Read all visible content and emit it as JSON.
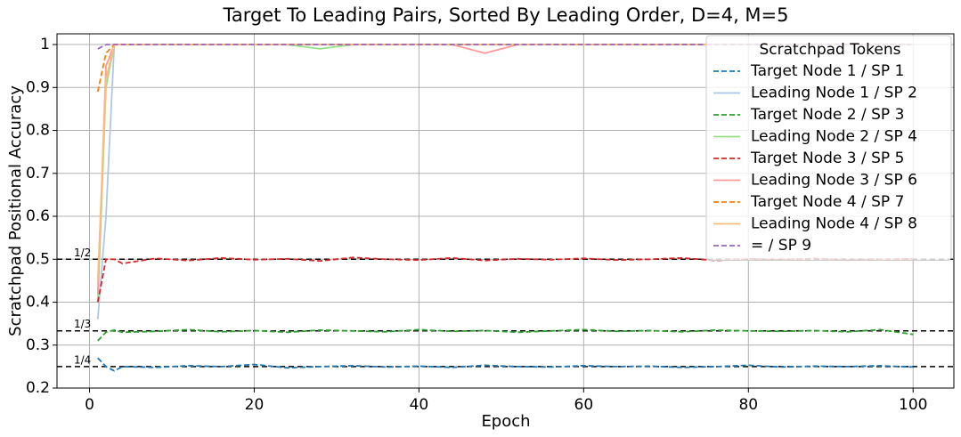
{
  "chart_data": {
    "type": "line",
    "title": "Target To Leading Pairs, Sorted By Leading Order, D=4, M=5",
    "x_label": "Epoch",
    "y_label": "Scratchpad Positional Accuracy",
    "xlim": [
      -3.95,
      104.95
    ],
    "ylim": [
      0.2,
      1.025
    ],
    "xticks": [
      0,
      20,
      40,
      60,
      80,
      100
    ],
    "yticks": [
      0.2,
      0.3,
      0.4,
      0.5,
      0.6,
      0.7,
      0.8,
      0.9,
      1.0
    ],
    "grid": true,
    "legend_title": "Scratchpad Tokens",
    "legend_position": "upper-right",
    "reference_lines": [
      {
        "value": 0.5,
        "label": "1/2"
      },
      {
        "value": 0.3333,
        "label": "1/3"
      },
      {
        "value": 0.25,
        "label": "1/4"
      }
    ],
    "x": [
      1,
      2,
      3,
      4,
      8,
      12,
      16,
      20,
      24,
      28,
      32,
      36,
      40,
      44,
      48,
      52,
      56,
      60,
      64,
      68,
      72,
      76,
      80,
      84,
      88,
      92,
      96,
      100
    ],
    "series": [
      {
        "name": "Target Node 1 / SP 1",
        "color": "#1f77b4",
        "dash": true,
        "values": [
          0.27,
          0.25,
          0.24,
          0.25,
          0.248,
          0.252,
          0.25,
          0.255,
          0.247,
          0.25,
          0.252,
          0.249,
          0.251,
          0.248,
          0.253,
          0.25,
          0.249,
          0.252,
          0.25,
          0.251,
          0.248,
          0.25,
          0.253,
          0.249,
          0.251,
          0.25,
          0.252,
          0.249
        ]
      },
      {
        "name": "Leading Node 1 / SP 2",
        "color": "#aec7e8",
        "dash": false,
        "values": [
          0.36,
          0.6,
          1.0,
          1.0,
          1.0,
          1.0,
          1.0,
          1.0,
          1.0,
          1.0,
          1.0,
          1.0,
          1.0,
          1.0,
          1.0,
          1.0,
          1.0,
          1.0,
          1.0,
          1.0,
          1.0,
          1.0,
          1.0,
          1.0,
          1.0,
          1.0,
          1.0,
          1.0
        ]
      },
      {
        "name": "Target Node 2 / SP 3",
        "color": "#2ca02c",
        "dash": true,
        "values": [
          0.31,
          0.33,
          0.335,
          0.33,
          0.332,
          0.336,
          0.331,
          0.334,
          0.33,
          0.335,
          0.333,
          0.331,
          0.336,
          0.332,
          0.334,
          0.33,
          0.333,
          0.336,
          0.332,
          0.334,
          0.331,
          0.335,
          0.333,
          0.332,
          0.334,
          0.331,
          0.336,
          0.325
        ]
      },
      {
        "name": "Leading Node 2 / SP 4",
        "color": "#98df8a",
        "dash": false,
        "values": [
          0.4,
          0.9,
          1.0,
          1.0,
          1.0,
          1.0,
          1.0,
          1.0,
          1.0,
          0.99,
          1.0,
          1.0,
          1.0,
          1.0,
          1.0,
          1.0,
          1.0,
          1.0,
          1.0,
          1.0,
          1.0,
          1.0,
          1.0,
          1.0,
          1.0,
          1.0,
          1.0,
          1.0
        ]
      },
      {
        "name": "Target Node 3 / SP 5",
        "color": "#d62728",
        "dash": true,
        "values": [
          0.4,
          0.5,
          0.5,
          0.49,
          0.502,
          0.497,
          0.503,
          0.499,
          0.501,
          0.496,
          0.504,
          0.5,
          0.498,
          0.503,
          0.497,
          0.501,
          0.499,
          0.502,
          0.498,
          0.5,
          0.503,
          0.497,
          0.501,
          0.499,
          0.502,
          0.498,
          0.5,
          0.501
        ]
      },
      {
        "name": "Leading Node 3 / SP 6",
        "color": "#ff9896",
        "dash": false,
        "values": [
          0.42,
          0.95,
          1.0,
          1.0,
          1.0,
          1.0,
          1.0,
          1.0,
          1.0,
          1.0,
          1.0,
          1.0,
          1.0,
          1.0,
          0.98,
          1.0,
          1.0,
          1.0,
          1.0,
          1.0,
          1.0,
          1.0,
          1.0,
          1.0,
          1.0,
          1.0,
          1.0,
          1.0
        ]
      },
      {
        "name": "Target Node 4 / SP 7",
        "color": "#ff7f0e",
        "dash": true,
        "values": [
          0.89,
          0.98,
          1.0,
          1.0,
          1.0,
          1.0,
          1.0,
          1.0,
          1.0,
          1.0,
          1.0,
          1.0,
          1.0,
          1.0,
          1.0,
          1.0,
          1.0,
          1.0,
          1.0,
          1.0,
          1.0,
          1.0,
          1.0,
          1.0,
          1.0,
          1.0,
          1.0,
          1.0
        ]
      },
      {
        "name": "Leading Node 4 / SP 8",
        "color": "#ffbb78",
        "dash": false,
        "values": [
          0.45,
          0.92,
          1.0,
          1.0,
          1.0,
          1.0,
          1.0,
          1.0,
          1.0,
          1.0,
          1.0,
          1.0,
          1.0,
          1.0,
          1.0,
          1.0,
          1.0,
          1.0,
          1.0,
          1.0,
          1.0,
          1.0,
          1.0,
          1.0,
          1.0,
          1.0,
          1.0,
          1.0
        ]
      },
      {
        "name": "= / SP 9",
        "color": "#9467bd",
        "dash": true,
        "values": [
          0.99,
          1.0,
          1.0,
          1.0,
          1.0,
          1.0,
          1.0,
          1.0,
          1.0,
          1.0,
          1.0,
          1.0,
          1.0,
          1.0,
          1.0,
          1.0,
          1.0,
          1.0,
          1.0,
          1.0,
          1.0,
          1.0,
          1.0,
          1.0,
          1.0,
          1.0,
          1.0,
          1.0
        ]
      }
    ]
  }
}
